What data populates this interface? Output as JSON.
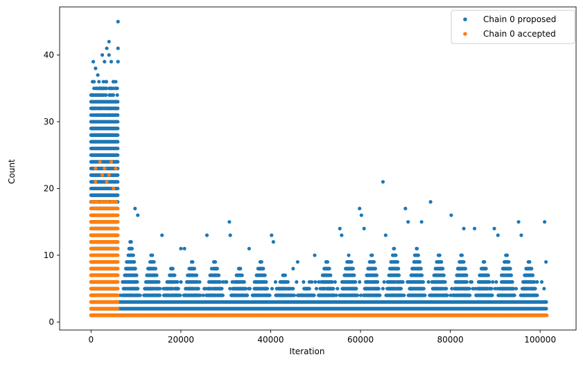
{
  "chart_data": {
    "type": "scatter",
    "title": "",
    "xlabel": "Iteration",
    "ylabel": "Count",
    "xlim": [
      -7000,
      108000
    ],
    "ylim": [
      -1.2,
      47.2
    ],
    "x_ticks": [
      0,
      20000,
      40000,
      60000,
      80000,
      100000
    ],
    "x_tick_labels": [
      "0",
      "20000",
      "40000",
      "60000",
      "80000",
      "100000"
    ],
    "y_ticks": [
      0,
      10,
      20,
      30,
      40
    ],
    "y_tick_labels": [
      "0",
      "10",
      "20",
      "30",
      "40"
    ],
    "grid": false,
    "legend_position": "top-right",
    "colors": {
      "proposed": "#1f77b4",
      "accepted": "#ff7f0e"
    },
    "series": [
      {
        "name": "Chain 0 proposed",
        "description_points": [
          [
            500,
            39
          ],
          [
            1000,
            38
          ],
          [
            1500,
            37
          ],
          [
            2500,
            40
          ],
          [
            3000,
            39
          ],
          [
            3500,
            41
          ],
          [
            4000,
            42
          ],
          [
            4000,
            40
          ],
          [
            4500,
            39
          ],
          [
            5000,
            36
          ],
          [
            5500,
            35
          ],
          [
            6000,
            45
          ],
          [
            6000,
            41
          ],
          [
            6000,
            39
          ],
          [
            9800,
            17
          ],
          [
            10400,
            16
          ],
          [
            15800,
            13
          ],
          [
            20000,
            11
          ],
          [
            20800,
            11
          ],
          [
            25800,
            13
          ],
          [
            30800,
            15
          ],
          [
            31000,
            13
          ],
          [
            35200,
            11
          ],
          [
            40200,
            13
          ],
          [
            40600,
            12
          ],
          [
            45000,
            8
          ],
          [
            46000,
            9
          ],
          [
            49800,
            10
          ],
          [
            55400,
            14
          ],
          [
            55800,
            13
          ],
          [
            59800,
            17
          ],
          [
            60200,
            16
          ],
          [
            60800,
            14
          ],
          [
            65000,
            21
          ],
          [
            65600,
            13
          ],
          [
            70000,
            17
          ],
          [
            70600,
            15
          ],
          [
            73600,
            15
          ],
          [
            75600,
            18
          ],
          [
            80200,
            16
          ],
          [
            83000,
            14
          ],
          [
            85400,
            14
          ],
          [
            89800,
            14
          ],
          [
            90600,
            13
          ],
          [
            95200,
            15
          ],
          [
            95800,
            13
          ],
          [
            101000,
            15
          ],
          [
            101300,
            9
          ]
        ],
        "dense_bands": [
          {
            "x": [
              0,
              6000
            ],
            "y": [
              1,
              36
            ]
          },
          {
            "x": [
              6000,
              101500
            ],
            "y": [
              1,
              3
            ]
          }
        ],
        "cluster_peaks": [
          {
            "x": 8800,
            "top": 12
          },
          {
            "x": 13500,
            "top": 10
          },
          {
            "x": 18000,
            "top": 8
          },
          {
            "x": 22500,
            "top": 9
          },
          {
            "x": 27500,
            "top": 9
          },
          {
            "x": 33000,
            "top": 8
          },
          {
            "x": 37800,
            "top": 9
          },
          {
            "x": 43000,
            "top": 7
          },
          {
            "x": 48000,
            "top": 5
          },
          {
            "x": 52500,
            "top": 9
          },
          {
            "x": 57500,
            "top": 10
          },
          {
            "x": 62500,
            "top": 10
          },
          {
            "x": 67500,
            "top": 11
          },
          {
            "x": 72500,
            "top": 11
          },
          {
            "x": 77500,
            "top": 10
          },
          {
            "x": 82500,
            "top": 10
          },
          {
            "x": 87500,
            "top": 9
          },
          {
            "x": 92500,
            "top": 10
          },
          {
            "x": 97500,
            "top": 9
          }
        ]
      },
      {
        "name": "Chain 0 accepted",
        "description_points": [
          [
            2000,
            24
          ],
          [
            2500,
            22
          ],
          [
            3000,
            23
          ],
          [
            4500,
            24
          ],
          [
            4000,
            22
          ],
          [
            1000,
            23
          ],
          [
            1000,
            21
          ],
          [
            3500,
            21
          ],
          [
            5500,
            23
          ],
          [
            5000,
            20
          ]
        ],
        "dense_bands": [
          {
            "x": [
              0,
              6000
            ],
            "y": [
              1,
              18
            ]
          },
          {
            "x": [
              6000,
              101500
            ],
            "y": [
              1,
              1
            ]
          }
        ]
      }
    ]
  }
}
